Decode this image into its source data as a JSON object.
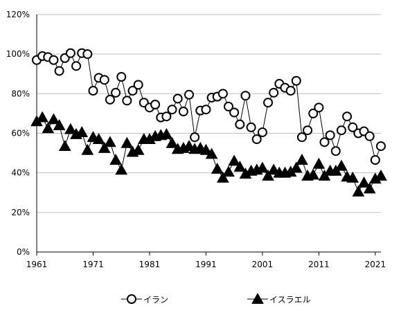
{
  "chart_data": {
    "type": "line",
    "x": [
      1961,
      1962,
      1963,
      1964,
      1965,
      1966,
      1967,
      1968,
      1969,
      1970,
      1971,
      1972,
      1973,
      1974,
      1975,
      1976,
      1977,
      1978,
      1979,
      1980,
      1981,
      1982,
      1983,
      1984,
      1985,
      1986,
      1987,
      1988,
      1989,
      1990,
      1991,
      1992,
      1993,
      1994,
      1995,
      1996,
      1997,
      1998,
      1999,
      2000,
      2001,
      2002,
      2003,
      2004,
      2005,
      2006,
      2007,
      2008,
      2009,
      2010,
      2011,
      2012,
      2013,
      2014,
      2015,
      2016,
      2017,
      2018,
      2019,
      2020,
      2021,
      2022
    ],
    "xticks": [
      "1961",
      "1971",
      "1981",
      "1991",
      "2001",
      "2011",
      "2021"
    ],
    "yticks": [
      "0%",
      "20%",
      "40%",
      "60%",
      "80%",
      "100%",
      "120%"
    ],
    "ylim": [
      0,
      120
    ],
    "grid": "horizontal",
    "legend_position": "bottom",
    "series": [
      {
        "name": "イラン",
        "marker": "circle-open",
        "color": "#000000",
        "values": [
          97,
          99,
          98.5,
          97,
          91.5,
          98,
          100.5,
          94,
          100.5,
          100,
          81.5,
          88,
          87,
          77,
          80.5,
          88.5,
          76.5,
          81.5,
          84.5,
          75.5,
          73,
          74.5,
          68,
          68.5,
          72,
          77.5,
          71,
          79.5,
          58,
          71.5,
          72,
          78,
          78.5,
          80,
          73.5,
          70.5,
          64.5,
          79,
          63,
          57,
          60.5,
          75.5,
          80.5,
          85,
          83,
          81.5,
          86.5,
          58,
          61.5,
          70,
          73,
          55.5,
          59,
          51,
          61.5,
          68.5,
          63,
          60,
          61,
          58.5,
          46.5,
          53.5
        ]
      },
      {
        "name": "イスラエル",
        "marker": "triangle-filled",
        "color": "#000000",
        "values": [
          66,
          68,
          62.5,
          67,
          64,
          53.5,
          62,
          59.5,
          60.5,
          51.5,
          58,
          57,
          52.5,
          55.5,
          46.5,
          41.5,
          55,
          50.5,
          51.5,
          57,
          57,
          58.5,
          59,
          59.5,
          55,
          52,
          52.5,
          53.5,
          52,
          52.5,
          51.5,
          49.5,
          42,
          37.5,
          40.5,
          46,
          43,
          39.5,
          41,
          41.5,
          42.5,
          38.5,
          41.5,
          40,
          40,
          40.5,
          42.5,
          46.5,
          38.5,
          39,
          44.5,
          38.5,
          41,
          41,
          43.5,
          38,
          37.5,
          30.5,
          35,
          32,
          37,
          38.5
        ]
      }
    ]
  }
}
